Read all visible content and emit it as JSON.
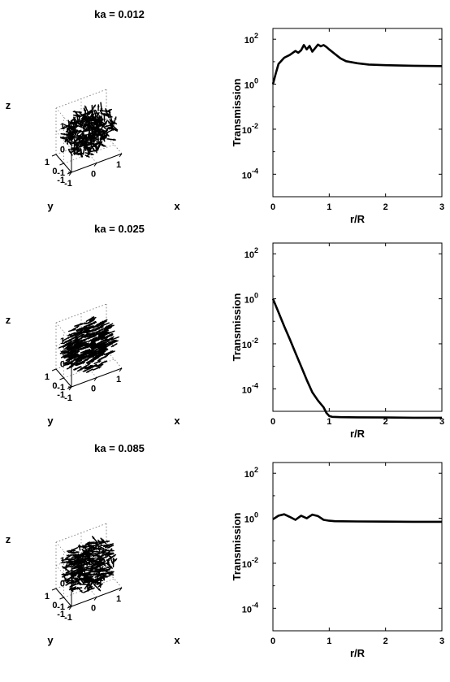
{
  "chart_data": [
    {
      "type": "scatter",
      "subtype": "3d-vector-field",
      "title": "ka = 0.012",
      "xlabel": "x",
      "ylabel": "y",
      "zlabel": "z",
      "xlim": [
        -1,
        1
      ],
      "ylim": [
        -1,
        1
      ],
      "zlim": [
        -1,
        1
      ],
      "x_ticks": [
        "-1",
        "0",
        "1"
      ],
      "y_ticks": [
        "-1",
        "0",
        "1"
      ],
      "z_ticks": [
        "-1",
        "0",
        "1"
      ],
      "grid": true,
      "arrow_count": 320,
      "orientation": "random"
    },
    {
      "type": "line",
      "title": "",
      "xlabel": "r/R",
      "ylabel": "Transmission",
      "yscale": "log",
      "xlim": [
        0,
        3
      ],
      "ylim": [
        1e-05,
        300
      ],
      "x_ticks": [
        "0",
        "1",
        "2",
        "3"
      ],
      "y_ticks": [
        {
          "base": "10",
          "exp": "2"
        },
        {
          "base": "10",
          "exp": "0"
        },
        {
          "base": "10",
          "exp": "-2"
        },
        {
          "base": "10",
          "exp": "-4"
        }
      ],
      "series": [
        {
          "x": [
            0,
            0.05,
            0.1,
            0.2,
            0.3,
            0.4,
            0.45,
            0.5,
            0.55,
            0.6,
            0.65,
            0.7,
            0.75,
            0.8,
            0.85,
            0.9,
            0.95,
            1.0,
            1.1,
            1.2,
            1.3,
            1.5,
            1.7,
            2.0,
            2.5,
            3.0
          ],
          "y": [
            1.0,
            3,
            8,
            15,
            20,
            30,
            25,
            32,
            55,
            35,
            50,
            28,
            40,
            58,
            48,
            55,
            45,
            35,
            22,
            14,
            10.5,
            8.5,
            7.5,
            7,
            6.6,
            6.4
          ]
        }
      ]
    },
    {
      "type": "scatter",
      "subtype": "3d-vector-field",
      "title": "ka = 0.025",
      "xlabel": "x",
      "ylabel": "y",
      "zlabel": "z",
      "xlim": [
        -1,
        1
      ],
      "ylim": [
        -1,
        1
      ],
      "zlim": [
        -1,
        1
      ],
      "x_ticks": [
        "-1",
        "0",
        "1"
      ],
      "y_ticks": [
        "-1",
        "0",
        "1"
      ],
      "z_ticks": [
        "-1",
        "0",
        "1"
      ],
      "grid": true,
      "arrow_count": 320,
      "orientation": "aligned"
    },
    {
      "type": "line",
      "title": "",
      "xlabel": "r/R",
      "ylabel": "Transmission",
      "yscale": "log",
      "xlim": [
        0,
        3
      ],
      "ylim": [
        1e-05,
        300
      ],
      "x_ticks": [
        "0",
        "1",
        "2",
        "3"
      ],
      "y_ticks": [
        {
          "base": "10",
          "exp": "2"
        },
        {
          "base": "10",
          "exp": "0"
        },
        {
          "base": "10",
          "exp": "-2"
        },
        {
          "base": "10",
          "exp": "-4"
        }
      ],
      "series": [
        {
          "x": [
            0,
            0.1,
            0.2,
            0.3,
            0.4,
            0.5,
            0.6,
            0.7,
            0.8,
            0.9,
            0.95,
            1.0,
            1.05,
            1.2,
            1.5,
            2.0,
            2.5,
            3.0
          ],
          "y": [
            1.0,
            0.25,
            0.06,
            0.016,
            0.004,
            0.001,
            0.00025,
            7e-05,
            3e-05,
            1.5e-05,
            8.5e-06,
            6.2e-06,
            5.7e-06,
            5.5e-06,
            5.4e-06,
            5.3e-06,
            5.2e-06,
            5.2e-06
          ]
        }
      ]
    },
    {
      "type": "scatter",
      "subtype": "3d-vector-field",
      "title": "ka = 0.085",
      "xlabel": "x",
      "ylabel": "y",
      "zlabel": "z",
      "xlim": [
        -1,
        1
      ],
      "ylim": [
        -1,
        1
      ],
      "zlim": [
        -1,
        1
      ],
      "x_ticks": [
        "-1",
        "0",
        "1"
      ],
      "y_ticks": [
        "-1",
        "0",
        "1"
      ],
      "z_ticks": [
        "-1",
        "0",
        "1"
      ],
      "grid": true,
      "arrow_count": 320,
      "orientation": "partially-aligned"
    },
    {
      "type": "line",
      "title": "",
      "xlabel": "r/R",
      "ylabel": "Transmission",
      "yscale": "log",
      "xlim": [
        0,
        3
      ],
      "ylim": [
        1e-05,
        300
      ],
      "x_ticks": [
        "0",
        "1",
        "2",
        "3"
      ],
      "y_ticks": [
        {
          "base": "10",
          "exp": "2"
        },
        {
          "base": "10",
          "exp": "0"
        },
        {
          "base": "10",
          "exp": "-2"
        },
        {
          "base": "10",
          "exp": "-4"
        }
      ],
      "series": [
        {
          "x": [
            0,
            0.1,
            0.2,
            0.3,
            0.4,
            0.5,
            0.6,
            0.7,
            0.8,
            0.9,
            1.0,
            1.1,
            1.5,
            2.0,
            2.5,
            3.0
          ],
          "y": [
            0.9,
            1.3,
            1.5,
            1.15,
            0.85,
            1.3,
            1.0,
            1.45,
            1.25,
            0.85,
            0.78,
            0.74,
            0.72,
            0.71,
            0.7,
            0.7
          ]
        }
      ]
    }
  ]
}
